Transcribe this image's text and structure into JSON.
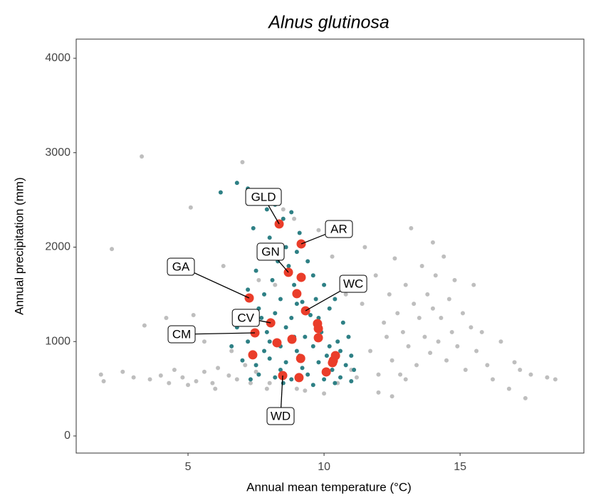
{
  "chart_data": {
    "type": "scatter",
    "title": "Alnus glutinosa",
    "x_label": "Annual mean temperature (°C)",
    "y_label": "Annual precipitation (mm)",
    "xlim": [
      0.89,
      19.55
    ],
    "ylim": [
      -181,
      4203
    ],
    "xticks": [
      5,
      10,
      15
    ],
    "yticks": [
      0,
      1000,
      2000,
      3000,
      4000
    ],
    "grid": false,
    "series": [
      {
        "color": "#bebebe",
        "x": [
          1.8,
          1.9,
          2.2,
          2.6,
          3.0,
          3.3,
          3.4,
          3.6,
          4.0,
          4.3,
          4.5,
          4.8,
          5.1,
          5.2,
          5.3,
          5.6,
          5.9,
          6.1,
          6.3,
          6.5,
          6.8,
          7.0,
          7.1,
          7.3,
          7.6,
          7.9,
          8.2,
          8.5,
          8.9,
          9.3,
          9.8,
          10.3,
          10.5,
          10.8,
          11.2,
          11.4,
          11.5,
          11.7,
          11.9,
          12.0,
          12.2,
          12.3,
          12.4,
          12.5,
          12.6,
          12.7,
          12.8,
          12.9,
          13.0,
          13.1,
          13.2,
          13.3,
          13.4,
          13.5,
          13.6,
          13.7,
          13.8,
          13.9,
          14.0,
          14.1,
          14.2,
          14.3,
          14.4,
          14.5,
          14.6,
          14.7,
          14.8,
          14.9,
          15.1,
          15.2,
          15.4,
          15.6,
          15.8,
          16.0,
          16.2,
          16.5,
          16.8,
          17.0,
          17.2,
          17.4,
          17.6,
          18.2,
          18.5,
          8.0,
          6.0,
          5.0,
          9.0,
          11.0,
          10.0,
          7.5,
          12.0,
          13.0,
          6.6,
          5.6,
          4.2,
          14.0,
          15.5,
          12.5
        ],
        "values": [
          650,
          580,
          1980,
          680,
          620,
          2960,
          1170,
          600,
          640,
          560,
          700,
          620,
          2420,
          1280,
          580,
          680,
          560,
          720,
          1800,
          640,
          600,
          2900,
          750,
          560,
          1650,
          500,
          1600,
          2400,
          2300,
          480,
          2180,
          1900,
          560,
          1500,
          620,
          1400,
          2000,
          900,
          1700,
          460,
          1200,
          1050,
          1500,
          800,
          1880,
          1300,
          650,
          1100,
          1600,
          950,
          2200,
          1400,
          750,
          1250,
          1800,
          1050,
          1500,
          880,
          1350,
          1700,
          1000,
          1250,
          1900,
          800,
          1450,
          1100,
          1650,
          950,
          1300,
          700,
          1150,
          900,
          1100,
          750,
          600,
          1000,
          500,
          780,
          700,
          400,
          650,
          620,
          600,
          560,
          500,
          540,
          500,
          700,
          450,
          680,
          650,
          600,
          900,
          1000,
          1250,
          2050,
          1600,
          420
        ]
      },
      {
        "color": "#2e8085",
        "x": [
          6.2,
          6.8,
          7.2,
          7.6,
          7.9,
          8.2,
          8.5,
          8.8,
          7.4,
          8.0,
          8.6,
          9.1,
          7.8,
          8.3,
          9.0,
          8.7,
          9.4,
          7.5,
          8.1,
          8.9,
          9.6,
          7.2,
          7.8,
          8.4,
          9.2,
          10.0,
          10.4,
          7.0,
          7.6,
          8.2,
          8.8,
          9.5,
          10.2,
          10.7,
          6.8,
          7.3,
          7.9,
          8.6,
          9.3,
          9.9,
          10.5,
          10.9,
          6.6,
          7.2,
          7.8,
          8.4,
          9.0,
          9.6,
          10.1,
          10.6,
          11.0,
          7.0,
          7.5,
          8.0,
          8.6,
          9.2,
          9.8,
          10.3,
          10.8,
          11.1,
          7.6,
          8.2,
          8.8,
          9.4,
          10.0,
          10.6,
          11.0,
          8.5,
          9.6,
          10.4,
          7.3,
          9.0,
          8.0,
          9.8,
          10.2,
          8.4,
          9.1,
          7.7,
          9.7,
          8.9
        ],
        "values": [
          2580,
          2680,
          2620,
          2500,
          2400,
          2450,
          2300,
          2370,
          2200,
          2100,
          2000,
          2150,
          1900,
          1850,
          1950,
          1800,
          1850,
          1750,
          1650,
          1600,
          1700,
          1550,
          1500,
          1450,
          1420,
          1600,
          1450,
          1300,
          1350,
          1300,
          1250,
          1280,
          1350,
          1200,
          1150,
          1200,
          1100,
          1150,
          1050,
          1100,
          1000,
          1050,
          950,
          1000,
          900,
          950,
          900,
          950,
          850,
          900,
          850,
          800,
          750,
          820,
          780,
          720,
          780,
          700,
          750,
          700,
          650,
          620,
          600,
          650,
          600,
          620,
          580,
          560,
          540,
          560,
          600,
          1400,
          1000,
          1250,
          950,
          700,
          850,
          1250,
          1450,
          1050
        ]
      },
      {
        "color": "#ea3d2a",
        "x": [
          8.35,
          9.16,
          8.69,
          9.16,
          7.25,
          9.0,
          9.32,
          8.04,
          9.76,
          9.79,
          7.46,
          9.79,
          8.27,
          8.82,
          9.14,
          7.38,
          10.42,
          10.34,
          10.31,
          8.48,
          9.08,
          10.08
        ],
        "values": [
          2245,
          2034,
          1733,
          1680,
          1461,
          1507,
          1326,
          1198,
          1190,
          1137,
          1092,
          1040,
          987,
          1024,
          821,
          859,
          851,
          798,
          776,
          640,
          618,
          678
        ],
        "labels": [
          "GLD",
          "AR",
          "GN",
          null,
          "GA",
          null,
          "WC",
          "CV",
          null,
          null,
          "CM",
          null,
          null,
          null,
          null,
          null,
          null,
          null,
          null,
          "WD",
          null,
          null
        ]
      }
    ]
  }
}
